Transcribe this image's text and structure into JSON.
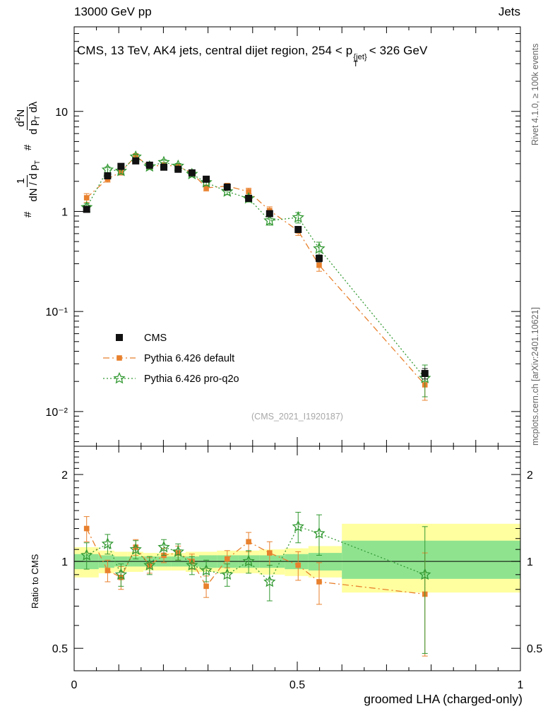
{
  "header": {
    "left": "13000 GeV pp",
    "right": "Jets"
  },
  "panel_title": {
    "pre": "CMS, 13 TeV, AK4 jets, central dijet region, 254 < p",
    "sup": "{jet}",
    "sub": "T",
    "post": "< 326 GeV"
  },
  "ylabel": {
    "hash1": "#",
    "f1num": "1",
    "f1den_pre": "dN / d p",
    "f1den_sub": "T",
    "hash2": "#",
    "f2num_pre": "d",
    "f2num_sup": "2",
    "f2num_post": "N",
    "f2den_pre": "d p",
    "f2den_sub": "T",
    "f2den_post": " dλ"
  },
  "ratio_label": "Ratio to CMS",
  "xlabel": "groomed LHA (charged-only)",
  "watermark": "(CMS_2021_I1920187)",
  "side_notes": {
    "top": "Rivet 4.1.0, ≥ 100k events",
    "bottom": "mcplots.cern.ch [arXiv:2401.10621]"
  },
  "colors": {
    "cms": "#111111",
    "pythia_default": "#e8802d",
    "pythia_proq2o": "#339933",
    "band_yellow": "#ffffa0",
    "band_green": "#8fe38f",
    "frame": "#000000",
    "watermark": "#a8a8a8"
  },
  "chart_data": {
    "type": "line",
    "title": "CMS, 13 TeV, AK4 jets, central dijet region, 254 < pT{jet} < 326 GeV",
    "xlabel": "groomed LHA (charged-only)",
    "ylabel": "# 1/(dN/dpT) d2N/(dpT dλ)",
    "ratio_ylabel": "Ratio to CMS",
    "legend_position": "inside-left-lower",
    "grid": false,
    "xlim": [
      0,
      1
    ],
    "ylim_main": [
      0.0045,
      70
    ],
    "yscale_main": "log",
    "ylim_ratio": [
      0.418,
      2.506
    ],
    "yscale_ratio": "log",
    "xticks": [
      {
        "v": 0,
        "label": "0"
      },
      {
        "v": 0.5,
        "label": "0.5"
      },
      {
        "v": 1,
        "label": "1"
      }
    ],
    "yticks_main": [
      {
        "v": 10,
        "label": "10"
      },
      {
        "v": 1,
        "label": "1"
      },
      {
        "v": 0.1,
        "label": "10⁻¹"
      },
      {
        "v": 0.01,
        "label": "10⁻²"
      }
    ],
    "yticks_ratio": [
      {
        "v": 2,
        "label": "2"
      },
      {
        "v": 1,
        "label": "1"
      },
      {
        "v": 0.5,
        "label": "0.5"
      }
    ],
    "x": [
      0.028,
      0.075,
      0.105,
      0.138,
      0.169,
      0.201,
      0.233,
      0.264,
      0.296,
      0.343,
      0.391,
      0.438,
      0.502,
      0.549,
      0.786
    ],
    "series": [
      {
        "name": "CMS",
        "color": "#111111",
        "marker": "square",
        "line": "none",
        "values": [
          1.05,
          2.27,
          2.82,
          3.2,
          2.9,
          2.77,
          2.64,
          2.43,
          2.1,
          1.75,
          1.35,
          0.95,
          0.66,
          0.34,
          0.024
        ],
        "rel_err": [
          0.06,
          0.05,
          0.05,
          0.04,
          0.04,
          0.04,
          0.04,
          0.04,
          0.05,
          0.05,
          0.05,
          0.06,
          0.06,
          0.08,
          0.12
        ]
      },
      {
        "name": "Pythia 6.426 default",
        "color": "#e8802d",
        "marker": "square-small",
        "line": "dashdot",
        "values": [
          1.37,
          2.11,
          2.48,
          3.58,
          2.81,
          2.91,
          2.82,
          2.43,
          1.72,
          1.79,
          1.58,
          1.02,
          0.64,
          0.29,
          0.0185
        ],
        "rel_err": [
          0.1,
          0.07,
          0.07,
          0.06,
          0.06,
          0.06,
          0.06,
          0.06,
          0.07,
          0.07,
          0.08,
          0.09,
          0.1,
          0.13,
          0.3
        ],
        "ratio": [
          1.3,
          0.93,
          0.88,
          1.12,
          0.97,
          1.05,
          1.07,
          1.0,
          0.82,
          1.02,
          1.17,
          1.07,
          0.97,
          0.85,
          0.77
        ],
        "ratio_err": [
          0.13,
          0.08,
          0.08,
          0.07,
          0.06,
          0.06,
          0.06,
          0.06,
          0.07,
          0.07,
          0.09,
          0.1,
          0.11,
          0.14,
          0.3
        ]
      },
      {
        "name": "Pythia 6.426 pro-q2o",
        "color": "#339933",
        "marker": "star",
        "line": "dotted",
        "values": [
          1.1,
          2.61,
          2.54,
          3.52,
          2.81,
          3.1,
          2.85,
          2.36,
          1.95,
          1.58,
          1.35,
          0.81,
          0.87,
          0.425,
          0.0216
        ],
        "rel_err": [
          0.09,
          0.07,
          0.07,
          0.06,
          0.06,
          0.06,
          0.06,
          0.06,
          0.07,
          0.07,
          0.08,
          0.1,
          0.12,
          0.16,
          0.35
        ],
        "ratio": [
          1.05,
          1.15,
          0.9,
          1.1,
          0.97,
          1.12,
          1.08,
          0.97,
          0.93,
          0.9,
          1.0,
          0.85,
          1.32,
          1.25,
          0.9
        ],
        "ratio_err": [
          0.11,
          0.09,
          0.08,
          0.08,
          0.07,
          0.07,
          0.07,
          0.07,
          0.08,
          0.08,
          0.09,
          0.12,
          0.16,
          0.2,
          0.42
        ]
      }
    ],
    "bands": {
      "yellow_color": "#ffffa0",
      "green_color": "#8fe38f",
      "bins": [
        {
          "x0": 0.0,
          "x1": 0.055,
          "y": [
            0.88,
            1.12
          ],
          "g": [
            0.94,
            1.06
          ]
        },
        {
          "x0": 0.055,
          "x1": 0.09,
          "y": [
            0.91,
            1.09
          ],
          "g": [
            0.95,
            1.05
          ]
        },
        {
          "x0": 0.09,
          "x1": 0.12,
          "y": [
            0.92,
            1.08
          ],
          "g": [
            0.96,
            1.04
          ]
        },
        {
          "x0": 0.12,
          "x1": 0.155,
          "y": [
            0.92,
            1.08
          ],
          "g": [
            0.96,
            1.04
          ]
        },
        {
          "x0": 0.155,
          "x1": 0.185,
          "y": [
            0.93,
            1.07
          ],
          "g": [
            0.96,
            1.04
          ]
        },
        {
          "x0": 0.185,
          "x1": 0.217,
          "y": [
            0.93,
            1.07
          ],
          "g": [
            0.96,
            1.04
          ]
        },
        {
          "x0": 0.217,
          "x1": 0.25,
          "y": [
            0.93,
            1.07
          ],
          "g": [
            0.96,
            1.04
          ]
        },
        {
          "x0": 0.25,
          "x1": 0.28,
          "y": [
            0.92,
            1.08
          ],
          "g": [
            0.96,
            1.04
          ]
        },
        {
          "x0": 0.28,
          "x1": 0.32,
          "y": [
            0.92,
            1.08
          ],
          "g": [
            0.95,
            1.05
          ]
        },
        {
          "x0": 0.32,
          "x1": 0.368,
          "y": [
            0.91,
            1.09
          ],
          "g": [
            0.95,
            1.05
          ]
        },
        {
          "x0": 0.368,
          "x1": 0.415,
          "y": [
            0.91,
            1.09
          ],
          "g": [
            0.95,
            1.05
          ]
        },
        {
          "x0": 0.415,
          "x1": 0.472,
          "y": [
            0.9,
            1.1
          ],
          "g": [
            0.95,
            1.05
          ]
        },
        {
          "x0": 0.472,
          "x1": 0.525,
          "y": [
            0.89,
            1.11
          ],
          "g": [
            0.94,
            1.06
          ]
        },
        {
          "x0": 0.525,
          "x1": 0.6,
          "y": [
            0.88,
            1.13
          ],
          "g": [
            0.93,
            1.07
          ]
        },
        {
          "x0": 0.6,
          "x1": 1.0,
          "y": [
            0.78,
            1.35
          ],
          "g": [
            0.87,
            1.18
          ]
        }
      ]
    }
  }
}
